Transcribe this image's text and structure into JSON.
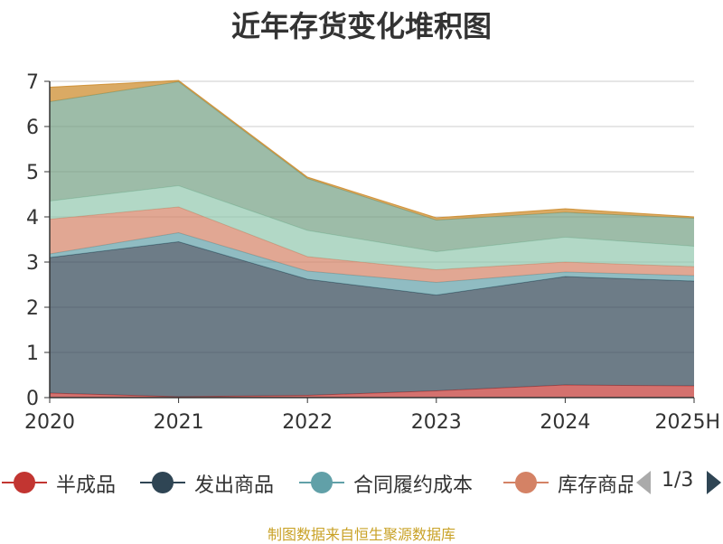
{
  "chart_data": {
    "type": "area",
    "stacked": true,
    "title": "近年存货变化堆积图",
    "x": [
      "2020",
      "2021",
      "2022",
      "2023",
      "2024",
      "2025H"
    ],
    "ylim": [
      0,
      7
    ],
    "yticks": [
      0,
      1,
      2,
      3,
      4,
      5,
      6,
      7
    ],
    "grid": true,
    "legend_position": "bottom",
    "series": [
      {
        "name": "半成品",
        "color": "#c23531",
        "values": [
          0.1,
          0.02,
          0.05,
          0.15,
          0.28,
          0.26
        ]
      },
      {
        "name": "发出商品",
        "color": "#2f4554",
        "values": [
          3.0,
          3.43,
          2.57,
          2.12,
          2.4,
          2.32
        ]
      },
      {
        "name": "合同履约成本",
        "color": "#61a0a8",
        "values": [
          0.08,
          0.2,
          0.18,
          0.28,
          0.1,
          0.12
        ]
      },
      {
        "name": "库存商品",
        "color": "#d48265",
        "values": [
          0.77,
          0.57,
          0.32,
          0.28,
          0.22,
          0.2
        ]
      },
      {
        "color": "#91c7ae",
        "values": [
          0.4,
          0.47,
          0.58,
          0.4,
          0.55,
          0.45
        ]
      },
      {
        "color": "#749f83",
        "values": [
          2.2,
          2.3,
          1.15,
          0.7,
          0.55,
          0.62
        ]
      },
      {
        "color": "#ca8622",
        "values": [
          0.32,
          0.03,
          0.03,
          0.05,
          0.08,
          0.03
        ]
      }
    ]
  },
  "legend": {
    "page_indicator": "1/3"
  },
  "footer": {
    "source": "制图数据来自恒生聚源数据库"
  }
}
